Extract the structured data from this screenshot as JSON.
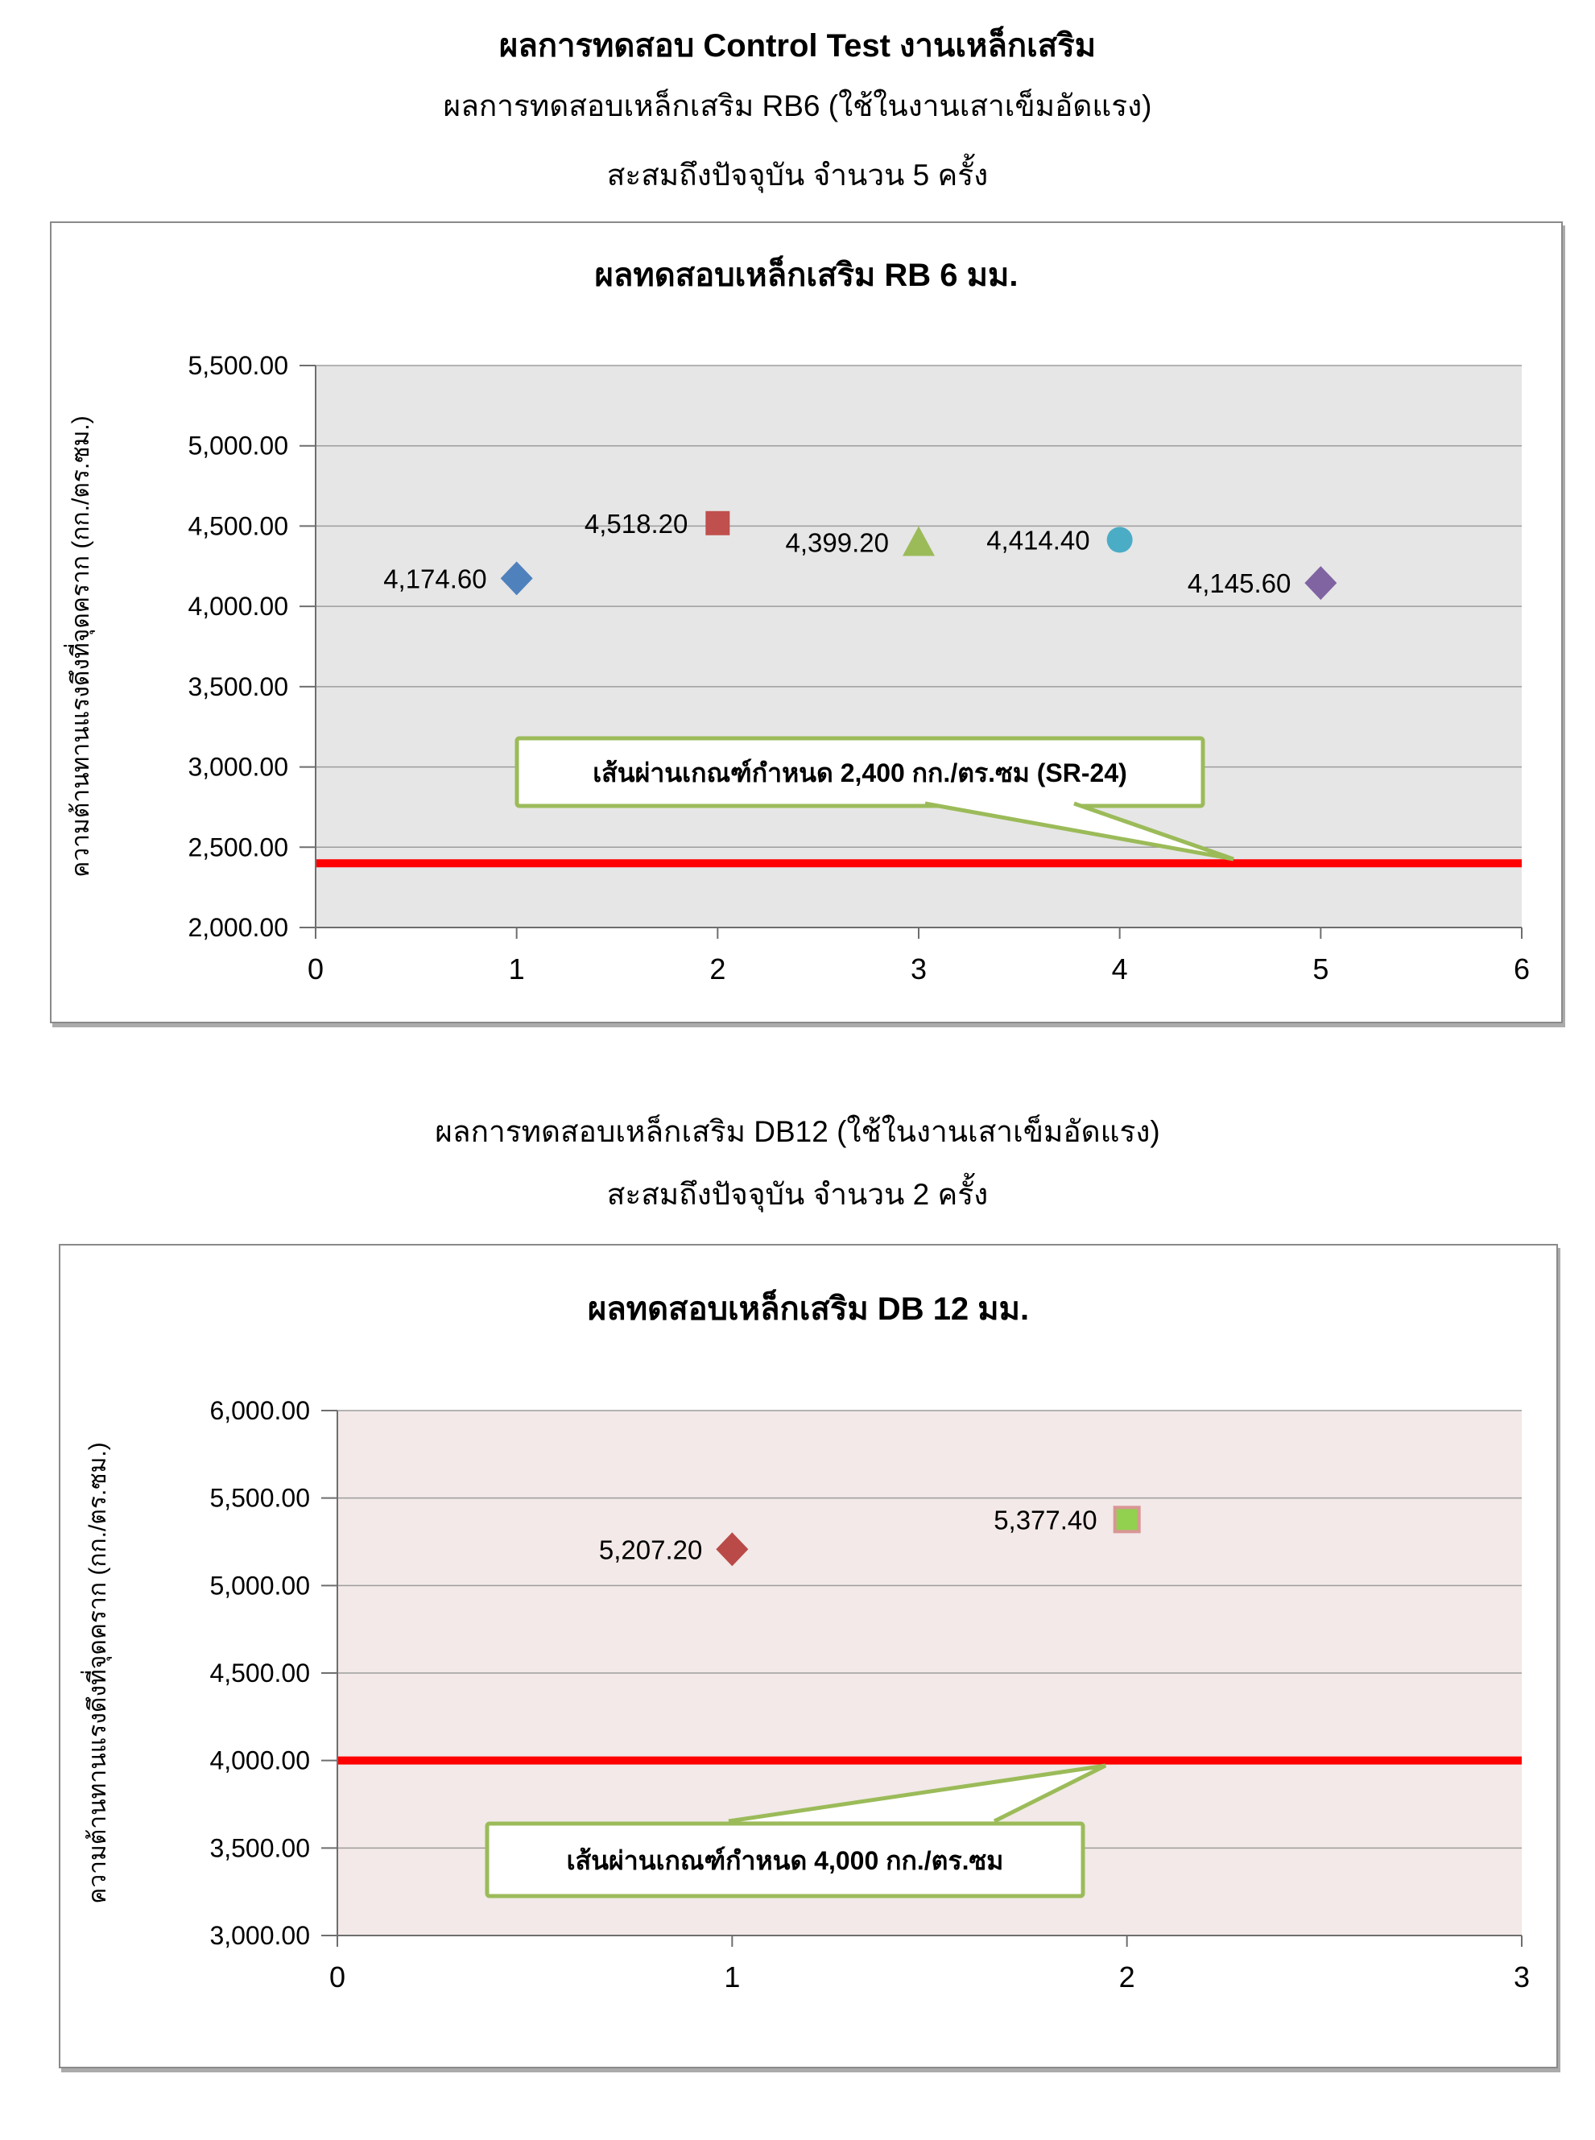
{
  "page": {
    "title": "ผลการทดสอบ Control Test งานเหล็กเสริม",
    "sections": [
      {
        "subtitle": "ผลการทดสอบเหล็กเสริม RB6 (ใช้ในงานเสาเข็มอัดแรง)",
        "count_line": "สะสมถึงปัจจุบัน จำนวน 5 ครั้ง"
      },
      {
        "subtitle": "ผลการทดสอบเหล็กเสริม DB12 (ใช้ในงานเสาเข็มอัดแรง)",
        "count_line": "สะสมถึงปัจจุบัน จำนวน 2 ครั้ง"
      }
    ]
  },
  "chart_data": [
    {
      "type": "scatter",
      "title": "ผลทดสอบเหล็กเสริม RB 6 มม.",
      "xlabel": "",
      "ylabel": "ความต้านทานแรงดึงที่จุดคราก  (กก./ตร.ซม.)",
      "xlim": [
        0,
        6
      ],
      "ylim": [
        2000,
        5500
      ],
      "grid": true,
      "legend": "none",
      "plot_bg": "#E6E6E6",
      "x_ticks": [
        "0",
        "1",
        "2",
        "3",
        "4",
        "5",
        "6"
      ],
      "y_ticks": [
        "5,500.00",
        "5,000.00",
        "4,500.00",
        "4,000.00",
        "3,500.00",
        "3,000.00",
        "2,500.00",
        "2,000.00"
      ],
      "points": [
        {
          "x": 1,
          "y": 4174.6,
          "label": "4,174.60",
          "marker": "diamond",
          "color": "#4F81BD"
        },
        {
          "x": 2,
          "y": 4518.2,
          "label": "4,518.20",
          "marker": "square",
          "color": "#C0504D"
        },
        {
          "x": 3,
          "y": 4399.2,
          "label": "4,399.20",
          "marker": "triangle",
          "color": "#9BBB59"
        },
        {
          "x": 4,
          "y": 4414.4,
          "label": "4,414.40",
          "marker": "circle",
          "color": "#4BACC6"
        },
        {
          "x": 5,
          "y": 4145.6,
          "label": "4,145.60",
          "marker": "diamond",
          "color": "#8064A2"
        }
      ],
      "limit_line": {
        "y": 2400,
        "color": "#FE0000",
        "callout": "เส้นผ่านเกณฑ์กำหนด 2,400 กก./ตร.ซม (SR-24)",
        "callout_border": "#9BBB59"
      }
    },
    {
      "type": "scatter",
      "title": "ผลทดสอบเหล็กเสริม DB 12 มม.",
      "xlabel": "",
      "ylabel": "ความต้านทานแรงดึงที่จุดคราก  (กก./ตร.ซม.)",
      "xlim": [
        0,
        3
      ],
      "ylim": [
        3000,
        6000
      ],
      "grid": true,
      "legend": "none",
      "plot_bg": "#F2E9E8",
      "x_ticks": [
        "0",
        "1",
        "2",
        "3"
      ],
      "y_ticks": [
        "6,000.00",
        "5,500.00",
        "5,000.00",
        "4,500.00",
        "4,000.00",
        "3,500.00",
        "3,000.00"
      ],
      "points": [
        {
          "x": 1,
          "y": 5207.2,
          "label": "5,207.20",
          "marker": "diamond",
          "color": "#B94A48"
        },
        {
          "x": 2,
          "y": 5377.4,
          "label": "5,377.40",
          "marker": "square",
          "color": "#92D050",
          "border": "#D99694"
        }
      ],
      "limit_line": {
        "y": 4000,
        "color": "#FE0000",
        "callout": "เส้นผ่านเกณฑ์กำหนด 4,000 กก./ตร.ซม",
        "callout_border": "#9BBB59"
      }
    }
  ]
}
